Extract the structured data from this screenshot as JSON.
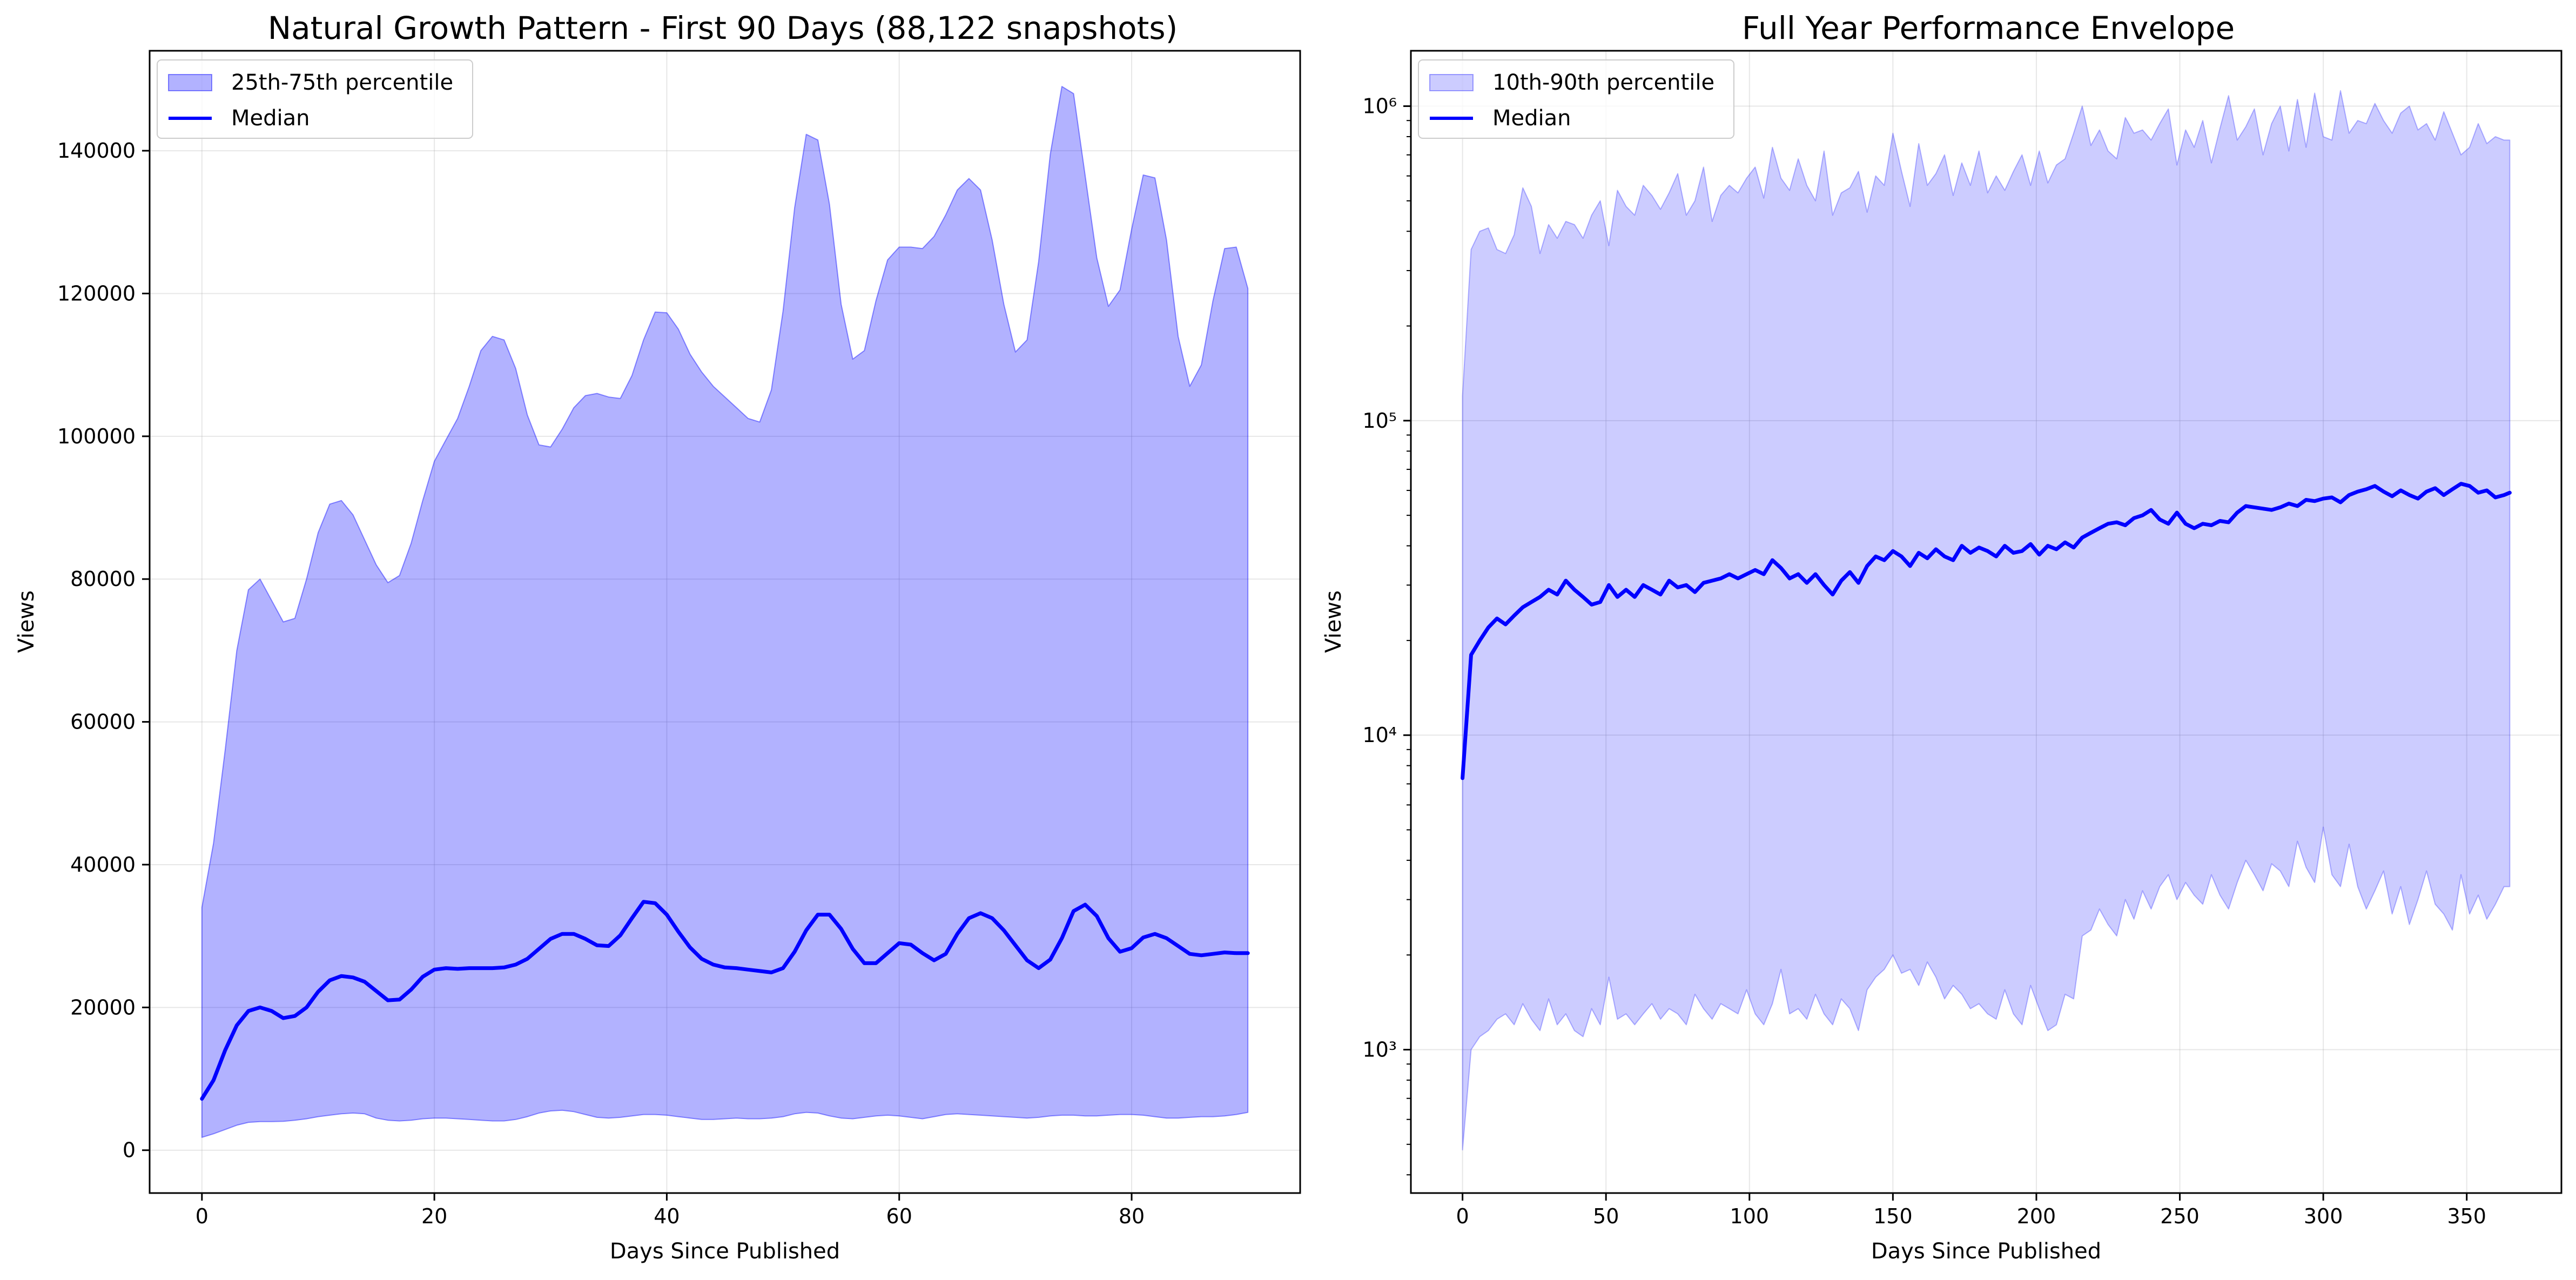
{
  "chart_data": [
    {
      "type": "area",
      "title": "Natural Growth Pattern - First 90 Days (88,122 snapshots)",
      "xlabel": "Days Since Published",
      "ylabel": "Views",
      "xlim": [
        -4.5,
        94.5
      ],
      "ylim": [
        -6000,
        154000
      ],
      "grid": true,
      "legend_position": "upper-left",
      "x_ticks": [
        0,
        20,
        40,
        60,
        80
      ],
      "y_ticks": [
        0,
        20000,
        40000,
        60000,
        80000,
        100000,
        120000,
        140000
      ],
      "x_tick_labels": [
        "0",
        "20",
        "40",
        "60",
        "80"
      ],
      "y_tick_labels": [
        "0",
        "20000",
        "40000",
        "60000",
        "80000",
        "100000",
        "120000",
        "140000"
      ],
      "x": [
        0,
        1,
        2,
        3,
        4,
        5,
        6,
        7,
        8,
        9,
        10,
        11,
        12,
        13,
        14,
        15,
        16,
        17,
        18,
        19,
        20,
        21,
        22,
        23,
        24,
        25,
        26,
        27,
        28,
        29,
        30,
        31,
        32,
        33,
        34,
        35,
        36,
        37,
        38,
        39,
        40,
        41,
        42,
        43,
        44,
        45,
        46,
        47,
        48,
        49,
        50,
        51,
        52,
        53,
        54,
        55,
        56,
        57,
        58,
        59,
        60,
        61,
        62,
        63,
        64,
        65,
        66,
        67,
        68,
        69,
        70,
        71,
        72,
        73,
        74,
        75,
        76,
        77,
        78,
        79,
        80,
        81,
        82,
        83,
        84,
        85,
        86,
        87,
        88,
        89,
        90
      ],
      "series": [
        {
          "name": "25th-75th percentile",
          "kind": "band",
          "color": "#0000ff",
          "opacity": 0.3,
          "lower": [
            1800,
            2300,
            2900,
            3500,
            3900,
            4000,
            4000,
            4050,
            4200,
            4400,
            4700,
            4900,
            5100,
            5200,
            5100,
            4500,
            4200,
            4100,
            4200,
            4400,
            4500,
            4500,
            4400,
            4300,
            4200,
            4100,
            4100,
            4300,
            4700,
            5200,
            5500,
            5600,
            5400,
            5000,
            4600,
            4500,
            4600,
            4800,
            5000,
            5000,
            4900,
            4700,
            4500,
            4300,
            4300,
            4400,
            4500,
            4400,
            4400,
            4500,
            4700,
            5100,
            5300,
            5200,
            4800,
            4500,
            4400,
            4600,
            4800,
            4900,
            4800,
            4600,
            4400,
            4700,
            5000,
            5100,
            5000,
            4900,
            4800,
            4700,
            4600,
            4500,
            4600,
            4800,
            4900,
            4900,
            4800,
            4800,
            4900,
            5000,
            5000,
            4900,
            4700,
            4500,
            4500,
            4600,
            4700,
            4700,
            4800,
            5000,
            5300
          ],
          "upper": [
            34000,
            43000,
            56000,
            70000,
            78500,
            80000,
            77000,
            74000,
            74500,
            80000,
            86500,
            90500,
            91000,
            89000,
            85500,
            82000,
            79500,
            80500,
            85000,
            91000,
            96500,
            99500,
            102500,
            107000,
            112000,
            114000,
            113500,
            109500,
            103000,
            98800,
            98500,
            101000,
            104000,
            105700,
            106000,
            105500,
            105300,
            108500,
            113500,
            117400,
            117300,
            115000,
            111500,
            109000,
            107000,
            105500,
            104000,
            102500,
            102000,
            106500,
            117500,
            132000,
            142300,
            141500,
            132500,
            118500,
            110800,
            112000,
            119000,
            124700,
            126500,
            126500,
            126300,
            128000,
            131000,
            134500,
            136100,
            134500,
            127500,
            118500,
            111800,
            113500,
            124500,
            139500,
            149000,
            148000,
            136500,
            125000,
            118200,
            120500,
            129000,
            136600,
            136200,
            127500,
            114000,
            107000,
            110000,
            119000,
            126300,
            126500,
            120700
          ]
        },
        {
          "name": "Median",
          "kind": "line",
          "color": "#0000ff",
          "values": [
            7200,
            9800,
            14000,
            17500,
            19500,
            20000,
            19500,
            18500,
            18800,
            20000,
            22200,
            23800,
            24400,
            24200,
            23600,
            22300,
            21000,
            21100,
            22500,
            24300,
            25300,
            25500,
            25400,
            25500,
            25500,
            25500,
            25600,
            26000,
            26800,
            28200,
            29600,
            30300,
            30300,
            29600,
            28700,
            28600,
            30100,
            32500,
            34800,
            34600,
            33000,
            30600,
            28400,
            26800,
            26000,
            25600,
            25500,
            25300,
            25100,
            24900,
            25500,
            27800,
            30800,
            33000,
            33000,
            31000,
            28200,
            26200,
            26200,
            27600,
            29000,
            28800,
            27600,
            26600,
            27500,
            30300,
            32500,
            33200,
            32500,
            30800,
            28700,
            26600,
            25500,
            26700,
            29700,
            33500,
            34400,
            32800,
            29700,
            27800,
            28300,
            29800,
            30300,
            29700,
            28600,
            27500,
            27300,
            27500,
            27700,
            27600,
            27600
          ]
        }
      ]
    },
    {
      "type": "area",
      "title": "Full Year Performance Envelope",
      "xlabel": "Days Since Published",
      "ylabel": "Views",
      "yscale": "log",
      "xlim": [
        -18,
        383
      ],
      "ylim": [
        350,
        1500000
      ],
      "grid": true,
      "legend_position": "upper-left",
      "x_ticks": [
        0,
        50,
        100,
        150,
        200,
        250,
        300,
        350
      ],
      "y_ticks": [
        1000,
        10000,
        100000,
        1000000
      ],
      "x_tick_labels": [
        "0",
        "50",
        "100",
        "150",
        "200",
        "250",
        "300",
        "350"
      ],
      "y_tick_labels": [
        "10³",
        "10⁴",
        "10⁵",
        "10⁶"
      ],
      "x": [
        0,
        3,
        6,
        9,
        12,
        15,
        18,
        21,
        24,
        27,
        30,
        33,
        36,
        39,
        42,
        45,
        48,
        51,
        54,
        57,
        60,
        63,
        66,
        69,
        72,
        75,
        78,
        81,
        84,
        87,
        90,
        93,
        96,
        99,
        102,
        105,
        108,
        111,
        114,
        117,
        120,
        123,
        126,
        129,
        132,
        135,
        138,
        141,
        144,
        147,
        150,
        153,
        156,
        159,
        162,
        165,
        168,
        171,
        174,
        177,
        180,
        183,
        186,
        189,
        192,
        195,
        198,
        201,
        204,
        207,
        210,
        213,
        216,
        219,
        222,
        225,
        228,
        231,
        234,
        237,
        240,
        243,
        246,
        249,
        252,
        255,
        258,
        261,
        264,
        267,
        270,
        273,
        276,
        279,
        282,
        285,
        288,
        291,
        294,
        297,
        300,
        303,
        306,
        309,
        312,
        315,
        318,
        321,
        324,
        327,
        330,
        333,
        336,
        339,
        342,
        345,
        348,
        351,
        354,
        357,
        360,
        363,
        365
      ],
      "series": [
        {
          "name": "10th-90th percentile",
          "kind": "band",
          "color": "#0000ff",
          "opacity": 0.2,
          "lower": [
            480,
            1000,
            1100,
            1150,
            1250,
            1300,
            1200,
            1400,
            1250,
            1150,
            1450,
            1200,
            1300,
            1150,
            1100,
            1350,
            1200,
            1700,
            1250,
            1300,
            1200,
            1300,
            1400,
            1250,
            1350,
            1300,
            1200,
            1500,
            1350,
            1250,
            1400,
            1350,
            1300,
            1550,
            1300,
            1200,
            1400,
            1800,
            1300,
            1350,
            1250,
            1500,
            1300,
            1200,
            1450,
            1350,
            1150,
            1550,
            1700,
            1800,
            2000,
            1750,
            1800,
            1600,
            1900,
            1700,
            1450,
            1600,
            1500,
            1350,
            1400,
            1300,
            1250,
            1550,
            1300,
            1200,
            1600,
            1350,
            1150,
            1200,
            1500,
            1450,
            2300,
            2400,
            2800,
            2500,
            2300,
            3000,
            2600,
            3200,
            2800,
            3300,
            3600,
            3000,
            3400,
            3100,
            2900,
            3600,
            3100,
            2800,
            3400,
            4000,
            3600,
            3200,
            3900,
            3700,
            3300,
            4600,
            3800,
            3400,
            5100,
            3600,
            3300,
            4500,
            3300,
            2800,
            3200,
            3700,
            2700,
            3300,
            2500,
            3000,
            3700,
            2900,
            2700,
            2400,
            3600,
            2700,
            3100,
            2600,
            2900,
            3300,
            3300
          ],
          "upper": [
            120000,
            350000,
            400000,
            410000,
            350000,
            340000,
            390000,
            550000,
            480000,
            340000,
            420000,
            380000,
            430000,
            420000,
            380000,
            450000,
            500000,
            360000,
            540000,
            480000,
            450000,
            560000,
            520000,
            470000,
            530000,
            610000,
            450000,
            500000,
            640000,
            430000,
            520000,
            560000,
            530000,
            590000,
            640000,
            510000,
            740000,
            590000,
            540000,
            680000,
            560000,
            500000,
            720000,
            450000,
            530000,
            550000,
            620000,
            460000,
            600000,
            560000,
            820000,
            620000,
            480000,
            760000,
            560000,
            610000,
            700000,
            520000,
            660000,
            560000,
            720000,
            530000,
            600000,
            540000,
            620000,
            700000,
            560000,
            720000,
            570000,
            650000,
            680000,
            820000,
            1000000,
            750000,
            840000,
            720000,
            680000,
            920000,
            820000,
            840000,
            780000,
            880000,
            980000,
            650000,
            840000,
            740000,
            900000,
            660000,
            850000,
            1080000,
            780000,
            860000,
            980000,
            700000,
            880000,
            1000000,
            720000,
            1050000,
            740000,
            1100000,
            800000,
            780000,
            1120000,
            820000,
            900000,
            880000,
            1020000,
            900000,
            820000,
            950000,
            1000000,
            840000,
            880000,
            780000,
            960000,
            820000,
            700000,
            740000,
            880000,
            760000,
            800000,
            780000,
            780000
          ]
        },
        {
          "name": "Median",
          "kind": "line",
          "color": "#0000ff",
          "values": [
            7300,
            18000,
            20000,
            22000,
            23500,
            22500,
            24000,
            25500,
            26500,
            27500,
            29000,
            28000,
            31000,
            29000,
            27500,
            26000,
            26500,
            30000,
            27500,
            29000,
            27500,
            30000,
            29000,
            28000,
            31000,
            29500,
            30000,
            28500,
            30500,
            31000,
            31500,
            32500,
            31500,
            32500,
            33500,
            32500,
            36000,
            34000,
            31500,
            32500,
            30500,
            32500,
            30000,
            28000,
            31000,
            33000,
            30500,
            34500,
            37000,
            36000,
            38500,
            37000,
            34500,
            38000,
            36500,
            39000,
            37000,
            36000,
            40000,
            38000,
            39500,
            38500,
            37000,
            40000,
            38000,
            38500,
            40500,
            37500,
            40000,
            39000,
            41000,
            39500,
            42500,
            44000,
            45500,
            47000,
            47500,
            46500,
            49000,
            50000,
            52000,
            48500,
            47000,
            51000,
            47000,
            45500,
            47000,
            46500,
            48000,
            47500,
            51000,
            53500,
            53000,
            52500,
            52000,
            53000,
            54500,
            53500,
            56000,
            55500,
            56500,
            57000,
            55000,
            58000,
            59500,
            60500,
            62000,
            59500,
            57500,
            60000,
            58000,
            56500,
            59500,
            61000,
            58000,
            60500,
            63000,
            62000,
            59000,
            60000,
            57000,
            58000,
            59000
          ]
        }
      ]
    }
  ]
}
